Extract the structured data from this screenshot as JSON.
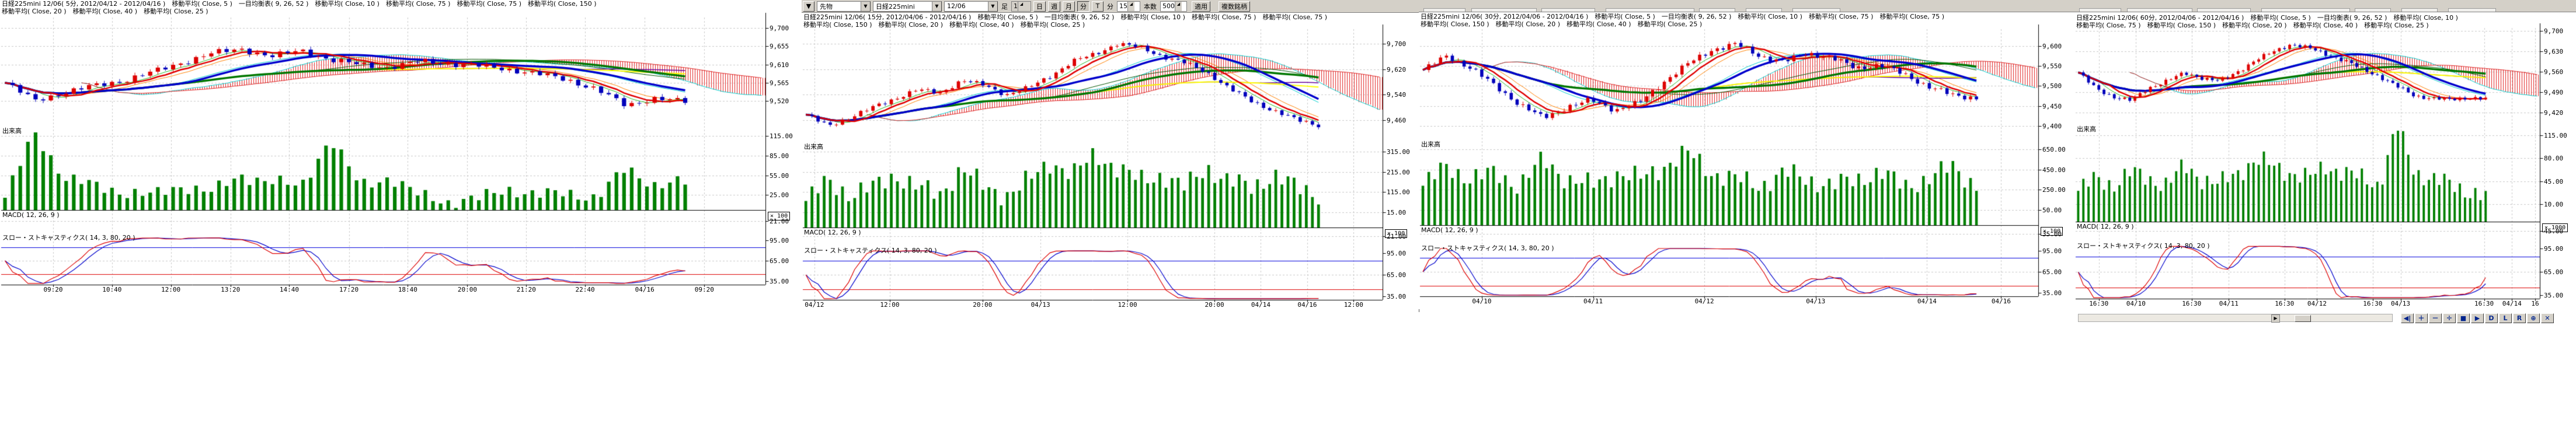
{
  "app_background": "#ffffff",
  "colors": {
    "candle_up": "#dd0000",
    "candle_down": "#0000bb",
    "volume_bar": "#008000",
    "grid": "#c9c9c9",
    "axis": "#000000",
    "cloud_hatch": "#e02020",
    "tenkan_line": "#e00000",
    "kijun_line": "#0000cc",
    "slow_ma_green": "#007700",
    "ma5": "#22bb22",
    "ma10": "#ff8000",
    "ma20": "#00cccc",
    "ma40": "#005500",
    "ma75": "#660099",
    "ma150": "#ffff00",
    "stoch_k": "#dd0000",
    "stoch_d": "#0000cc",
    "stoch_upper_line": "#0000dd",
    "stoch_lower_line": "#dd0000",
    "toolbar_bg": "#d4d0c8"
  },
  "toolbar": {
    "mini_dropdown_arrow": "▼",
    "category_select": "先物",
    "symbol_select": "日経225mini",
    "contract_select": "12/06",
    "bar_type_label": "足",
    "bar_span_value": "1",
    "period_buttons": [
      "日",
      "週",
      "月",
      "分",
      "T"
    ],
    "period_selected": "分",
    "minutes_label": "分",
    "minutes_value": "15",
    "bar_count_label": "本数",
    "bar_count_value": "500",
    "apply_button": "適用",
    "multi_symbol_button": "複数銘柄"
  },
  "bottom_toolbar": {
    "scroll_arrow": "▶",
    "buttons": [
      {
        "name": "jump-latest",
        "label": "◀|"
      },
      {
        "name": "zoom-in",
        "label": "＋"
      },
      {
        "name": "zoom-out",
        "label": "－"
      },
      {
        "name": "pan",
        "label": "✛"
      },
      {
        "name": "stop",
        "label": "■"
      },
      {
        "name": "play",
        "label": "▶"
      },
      {
        "name": "mode-d",
        "label": "D"
      },
      {
        "name": "mode-l",
        "label": "L"
      },
      {
        "name": "mode-r",
        "label": "R"
      },
      {
        "name": "magnify",
        "label": "⊕"
      },
      {
        "name": "close",
        "label": "✕"
      }
    ]
  },
  "panels": [
    {
      "title_line1": "日経225mini 12/06( 5分, 2012/04/12 - 2012/04/16 )　移動平均( Close, 5 )　一目均衡表( 9, 26, 52 )　移動平均( Close, 10 )　移動平均( Close, 75 )　移動平均( Close, 75 )　移動平均( Close, 150 )",
      "title_line2": "移動平均( Close, 20 )　移動平均( Close, 40 )　移動平均( Close, 25 )",
      "volume_label": "出来高",
      "macd_label": "MACD( 12, 26, 9 )",
      "stoch_label": "スロー・ストキャスティクス( 14, 3, 80, 20 )",
      "price_ticks": [
        9700,
        9655,
        9610,
        9565,
        9520
      ],
      "ylim": [
        9460,
        9726
      ],
      "vol_ticks": [
        "115.00",
        "85.00",
        "55.00",
        "25.00"
      ],
      "vol_multiplier": "× 100",
      "macd_tick": "21.00",
      "stoch_ticks": [
        "95.00",
        "65.00",
        "35.00"
      ],
      "time_ticks": [
        [
          "09:20",
          0.068
        ],
        [
          "10:40",
          0.145
        ],
        [
          "12:00",
          0.222
        ],
        [
          "13:20",
          0.3
        ],
        [
          "14:40",
          0.377
        ],
        [
          "17:20",
          0.455
        ],
        [
          "18:40",
          0.532
        ],
        [
          "20:00",
          0.61
        ],
        [
          "21:20",
          0.687
        ],
        [
          "22:40",
          0.764
        ],
        [
          "04/16",
          0.842
        ],
        [
          "09:20",
          0.92
        ]
      ]
    },
    {
      "title_line1": "日経225mini 12/06( 15分, 2012/04/06 - 2012/04/16 )　移動平均( Close, 5 )　一目均衡表( 9, 26, 52 )　移動平均( Close, 10 )　移動平均( Close, 75 )　移動平均( Close, 75 )",
      "title_line2": "移動平均( Close, 150 )　移動平均( Close, 20 )　移動平均( Close, 40 )　移動平均( Close, 25 )",
      "volume_label": "出来高",
      "macd_label": "MACD( 12, 26, 9 )",
      "stoch_label": "スロー・ストキャスティクス( 14, 3, 80, 20 )",
      "price_ticks": [
        9700,
        9620,
        9540,
        9460
      ],
      "ylim": [
        9395,
        9745
      ],
      "vol_ticks": [
        "315.00",
        "215.00",
        "115.00",
        "15.00"
      ],
      "vol_multiplier": "× 100",
      "macd_tick": "21.00",
      "stoch_ticks": [
        "95.00",
        "65.00",
        "35.00"
      ],
      "time_ticks": [
        [
          "04/12",
          0.02
        ],
        [
          "12:00",
          0.15
        ],
        [
          "20:00",
          0.31
        ],
        [
          "04/13",
          0.41
        ],
        [
          "12:00",
          0.56
        ],
        [
          "20:00",
          0.71
        ],
        [
          "04/14",
          0.79
        ],
        [
          "04/16",
          0.87
        ],
        [
          "12:00",
          0.95
        ]
      ]
    },
    {
      "title_line1": "日経225mini 12/06( 30分, 2012/04/06 - 2012/04/16 )　移動平均( Close, 5 )　一目均衡表( 9, 26, 52 )　移動平均( Close, 10 )　移動平均( Close, 75 )　移動平均( Close, 75 )",
      "title_line2": "移動平均( Close, 150 )　移動平均( Close, 20 )　移動平均( Close, 40 )　移動平均( Close, 25 )",
      "volume_label": "出来高",
      "macd_label": "MACD( 12, 26, 9 )",
      "stoch_label": "スロー・ストキャスティクス( 14, 3, 80, 20 )",
      "price_ticks": [
        9600,
        9550,
        9500,
        9450,
        9400
      ],
      "ylim": [
        9368,
        9642
      ],
      "vol_ticks": [
        "650.00",
        "450.00",
        "250.00",
        "50.00"
      ],
      "vol_multiplier": "× 100",
      "macd_tick": "35.00",
      "stoch_ticks": [
        "95.00",
        "65.00",
        "35.00"
      ],
      "time_ticks": [
        [
          "04/10",
          0.1
        ],
        [
          "04/11",
          0.28
        ],
        [
          "04/12",
          0.46
        ],
        [
          "04/13",
          0.64
        ],
        [
          "04/14",
          0.82
        ],
        [
          "04/16",
          0.94
        ]
      ]
    },
    {
      "title_line1": "日経225mini 12/06( 60分, 2012/04/06 - 2012/04/16 )　移動平均( Close, 5 )　一目均衡表( 9, 26, 52 )　移動平均( Close, 10 )",
      "title_line2": "移動平均( Close, 75 )　移動平均( Close, 150 )　移動平均( Close, 20 )　移動平均( Close, 40 )　移動平均( Close, 25 )",
      "volume_label": "出来高",
      "macd_label": "MACD( 12, 26, 9 )",
      "stoch_label": "スロー・ストキャスティクス( 14, 3, 80, 20 )",
      "price_ticks": [
        9700,
        9630,
        9560,
        9490,
        9420
      ],
      "ylim": [
        9383,
        9710
      ],
      "vol_ticks": [
        "115.00",
        "80.00",
        "45.00",
        "10.00"
      ],
      "vol_multiplier": "× 1000",
      "macd_tick": "45.00",
      "stoch_ticks": [
        "95.00",
        "65.00",
        "35.00"
      ],
      "time_ticks": [
        [
          "16:30",
          0.05
        ],
        [
          "04/10",
          0.13
        ],
        [
          "16:30",
          0.25
        ],
        [
          "04/11",
          0.33
        ],
        [
          "16:30",
          0.45
        ],
        [
          "04/12",
          0.52
        ],
        [
          "16:30",
          0.64
        ],
        [
          "04/13",
          0.7
        ],
        [
          "16:30",
          0.88
        ],
        [
          "04/14",
          0.94
        ],
        [
          "16",
          0.99
        ]
      ]
    }
  ],
  "chart_data": [
    {
      "type": "candlestick",
      "title": "日経225mini 12/06 5分足 2012/04/12 - 2012/04/16",
      "ylim": [
        9460,
        9726
      ],
      "n_bars": 90,
      "close_anchors": [
        9565,
        9522,
        9540,
        9558,
        9570,
        9592,
        9615,
        9638,
        9648,
        9630,
        9645,
        9622,
        9610,
        9603,
        9618,
        9612,
        9607,
        9598,
        9588,
        9572,
        9550,
        9508,
        9528,
        9518
      ],
      "volume_anchors": [
        15,
        95,
        40,
        30,
        22,
        18,
        30,
        22,
        42,
        35,
        28,
        88,
        30,
        40,
        18,
        10,
        14,
        26,
        18,
        22,
        14,
        52,
        30,
        34
      ],
      "overlays": [
        "移動平均 Close5",
        "移動平均 Close10",
        "移動平均 Close20",
        "移動平均 Close25",
        "移動平均 Close40",
        "移動平均 Close75",
        "移動平均 Close150",
        "一目均衡表 9,26,52"
      ],
      "sub_indicators": [
        "出来高",
        "MACD(12,26,9)",
        "スロー・ストキャスティクス(14,3,80,20)"
      ]
    },
    {
      "type": "candlestick",
      "title": "日経225mini 12/06 15分足 2012/04/06 - 2012/04/16",
      "ylim": [
        9395,
        9745
      ],
      "n_bars": 85,
      "close_anchors": [
        9478,
        9442,
        9470,
        9500,
        9528,
        9556,
        9545,
        9585,
        9570,
        9540,
        9562,
        9600,
        9645,
        9668,
        9700,
        9688,
        9660,
        9640,
        9610,
        9560,
        9520,
        9490,
        9462,
        9445
      ],
      "volume_anchors": [
        20,
        35,
        25,
        30,
        40,
        30,
        25,
        45,
        30,
        25,
        35,
        50,
        40,
        55,
        45,
        35,
        40,
        30,
        45,
        35,
        30,
        40,
        30,
        25
      ],
      "overlays": [
        "移動平均 Close5",
        "移動平均 Close10",
        "移動平均 Close20",
        "移動平均 Close25",
        "移動平均 Close40",
        "移動平均 Close75",
        "移動平均 Close150",
        "一目均衡表 9,26,52"
      ],
      "sub_indicators": [
        "出来高",
        "MACD(12,26,9)",
        "スロー・ストキャスティクス(14,3,80,20)"
      ]
    },
    {
      "type": "candlestick",
      "title": "日経225mini 12/06 30分足 2012/04/06 - 2012/04/16",
      "ylim": [
        9368,
        9642
      ],
      "n_bars": 95,
      "close_anchors": [
        9540,
        9575,
        9545,
        9500,
        9455,
        9420,
        9448,
        9465,
        9440,
        9458,
        9510,
        9555,
        9590,
        9605,
        9575,
        9560,
        9582,
        9570,
        9545,
        9552,
        9530,
        9498,
        9478,
        9470
      ],
      "volume_anchors": [
        30,
        45,
        35,
        40,
        30,
        50,
        35,
        30,
        40,
        35,
        45,
        55,
        40,
        35,
        30,
        40,
        35,
        30,
        35,
        40,
        30,
        35,
        45,
        30
      ],
      "overlays": [
        "移動平均 Close5",
        "移動平均 Close10",
        "移動平均 Close20",
        "移動平均 Close25",
        "移動平均 Close40",
        "移動平均 Close75",
        "移動平均 Close150",
        "一目均衡表 9,26,52"
      ],
      "sub_indicators": [
        "出来高",
        "MACD(12,26,9)",
        "スロー・ストキャスティクス(14,3,80,20)"
      ]
    },
    {
      "type": "candlestick",
      "title": "日経225mini 12/06 60分足 2012/04/06 - 2012/04/16",
      "ylim": [
        9383,
        9710
      ],
      "n_bars": 80,
      "close_anchors": [
        9558,
        9502,
        9475,
        9462,
        9505,
        9530,
        9555,
        9540,
        9528,
        9560,
        9600,
        9628,
        9655,
        9642,
        9620,
        9600,
        9570,
        9545,
        9510,
        9478,
        9470,
        9465,
        9472,
        9468
      ],
      "volume_anchors": [
        25,
        35,
        30,
        40,
        35,
        30,
        45,
        35,
        30,
        40,
        50,
        45,
        40,
        35,
        45,
        40,
        35,
        30,
        78,
        40,
        35,
        30,
        25,
        20
      ],
      "overlays": [
        "移動平均 Close5",
        "移動平均 Close10",
        "移動平均 Close20",
        "移動平均 Close25",
        "移動平均 Close40",
        "移動平均 Close75",
        "移動平均 Close150",
        "一目均衡表 9,26,52"
      ],
      "sub_indicators": [
        "出来高",
        "MACD(12,26,9)",
        "スロー・ストキャスティクス(14,3,80,20)"
      ]
    }
  ]
}
